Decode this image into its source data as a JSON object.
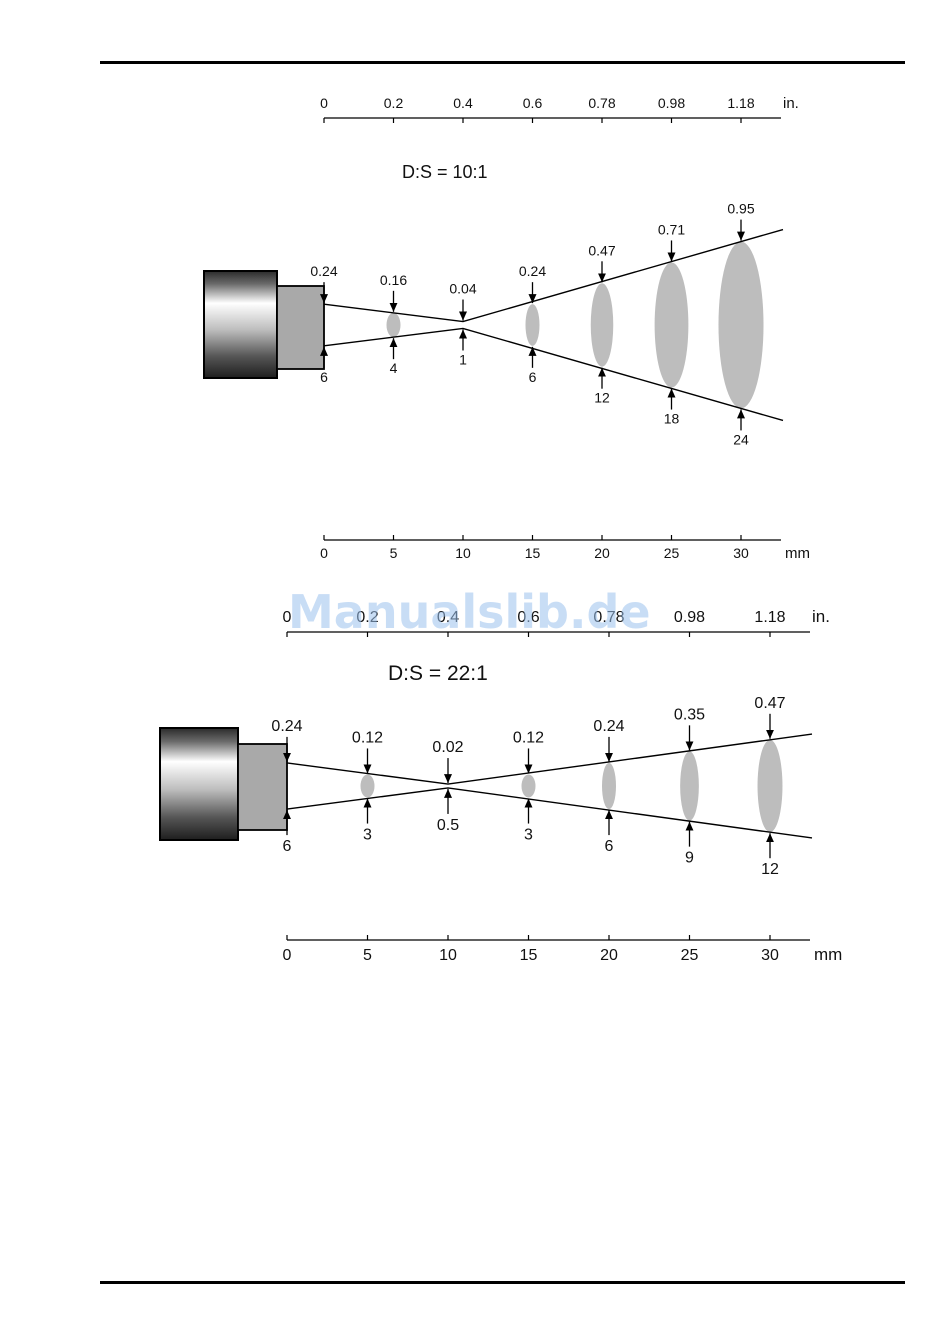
{
  "watermark": "Manualslib.de",
  "diagrams": [
    {
      "title": "D:S = 10:1",
      "top_ticks": [
        "0",
        "0.2",
        "0.4",
        "0.6",
        "0.78",
        "0.98",
        "1.18"
      ],
      "top_unit": "in.",
      "bottom_ticks": [
        "0",
        "5",
        "10",
        "15",
        "20",
        "25",
        "30"
      ],
      "bottom_unit": "mm",
      "ratio": 10,
      "lens_mm": 6,
      "focus_mm": 10,
      "focus_spot_mm": 1,
      "stations": [
        {
          "distance_mm": 0,
          "spot_in": "0.24",
          "spot_mm": "6",
          "spot_mm_value": 6
        },
        {
          "distance_mm": 5,
          "spot_in": "0.16",
          "spot_mm": "4",
          "spot_mm_value": 3.5
        },
        {
          "distance_mm": 10,
          "spot_in": "0.04",
          "spot_mm": "1",
          "spot_mm_value": 1
        },
        {
          "distance_mm": 15,
          "spot_in": "0.24",
          "spot_mm": "6",
          "spot_mm_value": 6
        },
        {
          "distance_mm": 20,
          "spot_in": "0.47",
          "spot_mm": "12",
          "spot_mm_value": 12
        },
        {
          "distance_mm": 25,
          "spot_in": "0.71",
          "spot_mm": "18",
          "spot_mm_value": 18
        },
        {
          "distance_mm": 30,
          "spot_in": "0.95",
          "spot_mm": "24",
          "spot_mm_value": 24
        }
      ]
    },
    {
      "title": "D:S = 22:1",
      "top_ticks": [
        "0",
        "0.2",
        "0.4",
        "0.6",
        "0.78",
        "0.98",
        "1.18"
      ],
      "top_unit": "in.",
      "bottom_ticks": [
        "0",
        "5",
        "10",
        "15",
        "20",
        "25",
        "30"
      ],
      "bottom_unit": "mm",
      "ratio": 22,
      "lens_mm": 6,
      "focus_mm": 10,
      "focus_spot_mm": 0.5,
      "stations": [
        {
          "distance_mm": 0,
          "spot_in": "0.24",
          "spot_mm": "6",
          "spot_mm_value": 6
        },
        {
          "distance_mm": 5,
          "spot_in": "0.12",
          "spot_mm": "3",
          "spot_mm_value": 3
        },
        {
          "distance_mm": 10,
          "spot_in": "0.02",
          "spot_mm": "0.5",
          "spot_mm_value": 0.5
        },
        {
          "distance_mm": 15,
          "spot_in": "0.12",
          "spot_mm": "3",
          "spot_mm_value": 3
        },
        {
          "distance_mm": 20,
          "spot_in": "0.24",
          "spot_mm": "6",
          "spot_mm_value": 6
        },
        {
          "distance_mm": 25,
          "spot_in": "0.35",
          "spot_mm": "9",
          "spot_mm_value": 9
        },
        {
          "distance_mm": 30,
          "spot_in": "0.47",
          "spot_mm": "12",
          "spot_mm_value": 12
        }
      ]
    }
  ]
}
